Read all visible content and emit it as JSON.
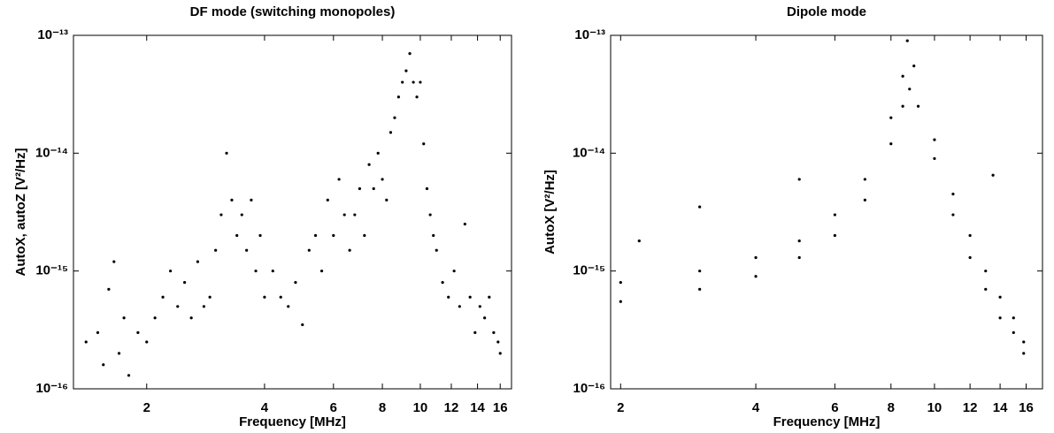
{
  "chart_data": [
    {
      "type": "scatter",
      "title": "DF mode (switching monopoles)",
      "x_label": "Frequency [MHz]",
      "y_label": "AutoX, autoZ [V²/Hz]",
      "xscale": "log",
      "yscale": "log",
      "color": "#000000",
      "xlim": [
        1.3,
        17.1
      ],
      "ylim": [
        1e-16,
        1e-13
      ],
      "xticks": [
        2,
        4,
        6,
        8,
        10,
        12,
        14,
        16
      ],
      "yticks": [
        {
          "value": 1e-16,
          "label": "10⁻¹⁶"
        },
        {
          "value": 1e-15,
          "label": "10⁻¹⁵"
        },
        {
          "value": 1e-14,
          "label": "10⁻¹⁴"
        },
        {
          "value": 1e-13,
          "label": "10⁻¹³"
        }
      ],
      "x": [
        1.4,
        1.5,
        1.55,
        1.6,
        1.65,
        1.7,
        1.75,
        1.8,
        1.9,
        2.0,
        2.1,
        2.2,
        2.3,
        2.4,
        2.5,
        2.6,
        2.7,
        2.8,
        2.9,
        3.0,
        3.1,
        3.2,
        3.3,
        3.4,
        3.5,
        3.6,
        3.7,
        3.8,
        3.9,
        4.0,
        4.2,
        4.4,
        4.6,
        4.8,
        5.0,
        5.2,
        5.4,
        5.6,
        5.8,
        6.0,
        6.2,
        6.4,
        6.6,
        6.8,
        7.0,
        7.2,
        7.4,
        7.6,
        7.8,
        8.0,
        8.2,
        8.4,
        8.6,
        8.8,
        9.0,
        9.2,
        9.4,
        9.6,
        9.8,
        10.0,
        10.2,
        10.4,
        10.6,
        10.8,
        11.0,
        11.4,
        11.8,
        12.2,
        12.6,
        13.0,
        13.4,
        13.8,
        14.2,
        14.6,
        15.0,
        15.4,
        15.8,
        16.0
      ],
      "values": [
        2.5e-16,
        3e-16,
        1.6e-16,
        7e-16,
        1.2e-15,
        2e-16,
        4e-16,
        1.3e-16,
        3e-16,
        2.5e-16,
        4e-16,
        6e-16,
        1e-15,
        5e-16,
        8e-16,
        4e-16,
        1.2e-15,
        5e-16,
        6e-16,
        1.5e-15,
        3e-15,
        1e-14,
        4e-15,
        2e-15,
        3e-15,
        1.5e-15,
        4e-15,
        1e-15,
        2e-15,
        6e-16,
        1e-15,
        6e-16,
        5e-16,
        8e-16,
        3.5e-16,
        1.5e-15,
        2e-15,
        1e-15,
        4e-15,
        2e-15,
        6e-15,
        3e-15,
        1.5e-15,
        3e-15,
        5e-15,
        2e-15,
        8e-15,
        5e-15,
        1e-14,
        6e-15,
        4e-15,
        1.5e-14,
        2e-14,
        3e-14,
        4e-14,
        5e-14,
        7e-14,
        4e-14,
        3e-14,
        4e-14,
        1.2e-14,
        5e-15,
        3e-15,
        2e-15,
        1.5e-15,
        8e-16,
        6e-16,
        1e-15,
        5e-16,
        2.5e-15,
        6e-16,
        3e-16,
        5e-16,
        4e-16,
        6e-16,
        3e-16,
        2.5e-16,
        2e-16
      ]
    },
    {
      "type": "scatter",
      "title": "Dipole mode",
      "x_label": "Frequency [MHz]",
      "y_label": "AutoX [V²/Hz]",
      "xscale": "log",
      "yscale": "log",
      "color": "#000000",
      "xlim": [
        1.9,
        17.4
      ],
      "ylim": [
        1e-16,
        1e-13
      ],
      "xticks": [
        2,
        4,
        6,
        8,
        10,
        12,
        14,
        16
      ],
      "yticks": [
        {
          "value": 1e-16,
          "label": "10⁻¹⁶"
        },
        {
          "value": 1e-15,
          "label": "10⁻¹⁵"
        },
        {
          "value": 1e-14,
          "label": "10⁻¹⁴"
        },
        {
          "value": 1e-13,
          "label": "10⁻¹³"
        }
      ],
      "x": [
        2,
        3,
        4,
        5,
        6,
        7,
        8,
        8.5,
        8.8,
        9.2,
        10,
        11,
        12,
        13,
        14,
        15,
        15.8,
        2,
        3,
        4,
        5,
        6,
        7,
        8,
        8.5,
        8.7,
        9,
        10,
        11,
        12,
        13,
        14,
        15,
        15.8,
        2.2,
        3,
        5,
        13.5
      ],
      "values": [
        5.5e-16,
        7e-16,
        9e-16,
        1.3e-15,
        2e-15,
        4e-15,
        1.2e-14,
        2.5e-14,
        3.5e-14,
        2.5e-14,
        9e-15,
        3e-15,
        1.3e-15,
        7e-16,
        4e-16,
        3e-16,
        2e-16,
        8e-16,
        1e-15,
        1.3e-15,
        1.8e-15,
        3e-15,
        6e-15,
        2e-14,
        4.5e-14,
        9e-14,
        5.5e-14,
        1.3e-14,
        4.5e-15,
        2e-15,
        1e-15,
        6e-16,
        4e-16,
        2.5e-16,
        1.8e-15,
        3.5e-15,
        6e-15,
        6.5e-15
      ]
    }
  ]
}
